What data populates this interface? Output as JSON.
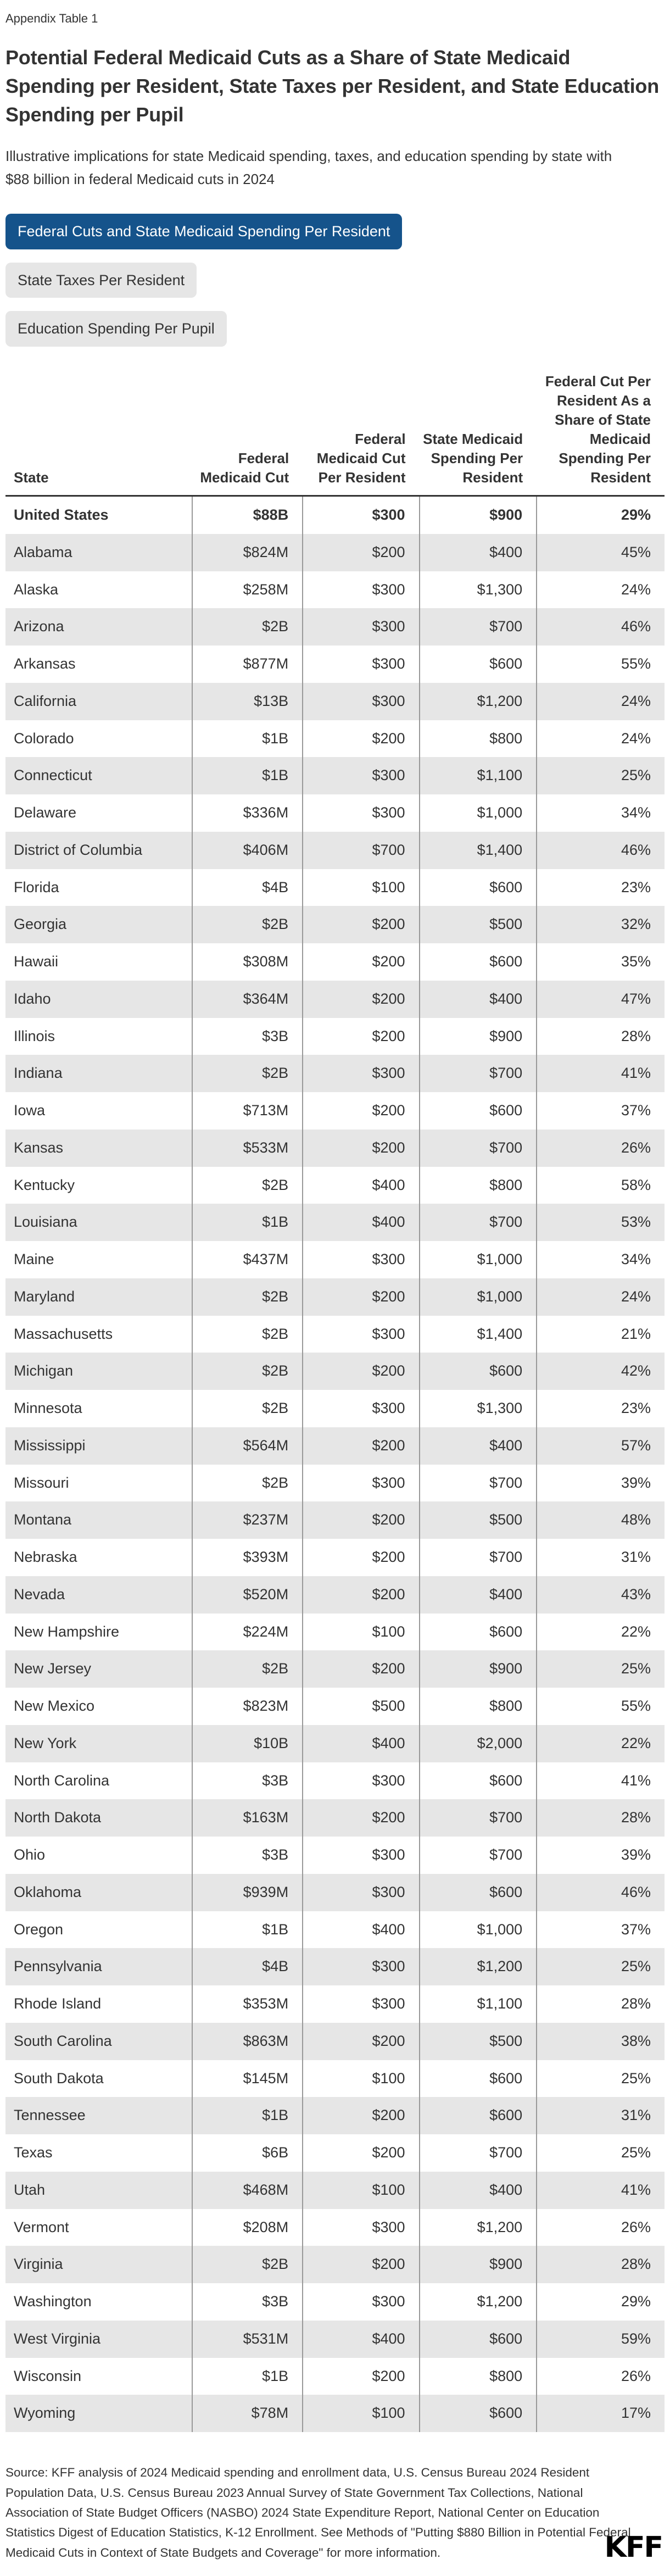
{
  "page": {
    "kicker": "Appendix Table 1",
    "logo": "KFF",
    "source": "Source: KFF analysis of 2024 Medicaid spending and enrollment data, U.S. Census Bureau 2024 Resident Population Data, U.S. Census Bureau 2023 Annual Survey of State Government Tax Collections, National Association of State Budget Officers (NASBO) 2024 State Expenditure Report, National Center on Education Statistics Digest of Education Statistics, K-12 Enrollment. See Methods of \"Putting $880 Billion in Potential Federal Medicaid Cuts in Context of State Budgets and Coverage\" for more information."
  },
  "tabs": [
    {
      "label": "Federal Cuts and State Medicaid Spending Per Resident",
      "active": true
    },
    {
      "label": "State Taxes Per Resident",
      "active": false
    },
    {
      "label": "Education Spending Per Pupil",
      "active": false
    }
  ],
  "colors": {
    "active_tab": "#15538b",
    "inactive_tab": "#e6e6e6",
    "row_stripe": "#e6e6e6",
    "text": "#333333",
    "divider": "#999999",
    "header_rule": "#333333"
  },
  "chart_data": {
    "type": "table",
    "title": "Potential Federal Medicaid Cuts as a Share of State Medicaid Spending per Resident, State Taxes per Resident, and State Education Spending per Pupil",
    "subtitle": "Illustrative implications for state Medicaid spending, taxes, and education spending by state with $88 billion in federal Medicaid cuts in 2024",
    "columns": [
      "State",
      "Federal Medicaid Cut",
      "Federal Medicaid Cut Per Resident",
      "State Medicaid Spending Per Resident",
      "Federal Cut Per Resident As a Share of State Medicaid Spending Per Resident"
    ],
    "rows": [
      [
        "United States",
        "$88B",
        "$300",
        "$900",
        "29%"
      ],
      [
        "Alabama",
        "$824M",
        "$200",
        "$400",
        "45%"
      ],
      [
        "Alaska",
        "$258M",
        "$300",
        "$1,300",
        "24%"
      ],
      [
        "Arizona",
        "$2B",
        "$300",
        "$700",
        "46%"
      ],
      [
        "Arkansas",
        "$877M",
        "$300",
        "$600",
        "55%"
      ],
      [
        "California",
        "$13B",
        "$300",
        "$1,200",
        "24%"
      ],
      [
        "Colorado",
        "$1B",
        "$200",
        "$800",
        "24%"
      ],
      [
        "Connecticut",
        "$1B",
        "$300",
        "$1,100",
        "25%"
      ],
      [
        "Delaware",
        "$336M",
        "$300",
        "$1,000",
        "34%"
      ],
      [
        "District of Columbia",
        "$406M",
        "$700",
        "$1,400",
        "46%"
      ],
      [
        "Florida",
        "$4B",
        "$100",
        "$600",
        "23%"
      ],
      [
        "Georgia",
        "$2B",
        "$200",
        "$500",
        "32%"
      ],
      [
        "Hawaii",
        "$308M",
        "$200",
        "$600",
        "35%"
      ],
      [
        "Idaho",
        "$364M",
        "$200",
        "$400",
        "47%"
      ],
      [
        "Illinois",
        "$3B",
        "$200",
        "$900",
        "28%"
      ],
      [
        "Indiana",
        "$2B",
        "$300",
        "$700",
        "41%"
      ],
      [
        "Iowa",
        "$713M",
        "$200",
        "$600",
        "37%"
      ],
      [
        "Kansas",
        "$533M",
        "$200",
        "$700",
        "26%"
      ],
      [
        "Kentucky",
        "$2B",
        "$400",
        "$800",
        "58%"
      ],
      [
        "Louisiana",
        "$1B",
        "$400",
        "$700",
        "53%"
      ],
      [
        "Maine",
        "$437M",
        "$300",
        "$1,000",
        "34%"
      ],
      [
        "Maryland",
        "$2B",
        "$200",
        "$1,000",
        "24%"
      ],
      [
        "Massachusetts",
        "$2B",
        "$300",
        "$1,400",
        "21%"
      ],
      [
        "Michigan",
        "$2B",
        "$200",
        "$600",
        "42%"
      ],
      [
        "Minnesota",
        "$2B",
        "$300",
        "$1,300",
        "23%"
      ],
      [
        "Mississippi",
        "$564M",
        "$200",
        "$400",
        "57%"
      ],
      [
        "Missouri",
        "$2B",
        "$300",
        "$700",
        "39%"
      ],
      [
        "Montana",
        "$237M",
        "$200",
        "$500",
        "48%"
      ],
      [
        "Nebraska",
        "$393M",
        "$200",
        "$700",
        "31%"
      ],
      [
        "Nevada",
        "$520M",
        "$200",
        "$400",
        "43%"
      ],
      [
        "New Hampshire",
        "$224M",
        "$100",
        "$600",
        "22%"
      ],
      [
        "New Jersey",
        "$2B",
        "$200",
        "$900",
        "25%"
      ],
      [
        "New Mexico",
        "$823M",
        "$500",
        "$800",
        "55%"
      ],
      [
        "New York",
        "$10B",
        "$400",
        "$2,000",
        "22%"
      ],
      [
        "North Carolina",
        "$3B",
        "$300",
        "$600",
        "41%"
      ],
      [
        "North Dakota",
        "$163M",
        "$200",
        "$700",
        "28%"
      ],
      [
        "Ohio",
        "$3B",
        "$300",
        "$700",
        "39%"
      ],
      [
        "Oklahoma",
        "$939M",
        "$300",
        "$600",
        "46%"
      ],
      [
        "Oregon",
        "$1B",
        "$400",
        "$1,000",
        "37%"
      ],
      [
        "Pennsylvania",
        "$4B",
        "$300",
        "$1,200",
        "25%"
      ],
      [
        "Rhode Island",
        "$353M",
        "$300",
        "$1,100",
        "28%"
      ],
      [
        "South Carolina",
        "$863M",
        "$200",
        "$500",
        "38%"
      ],
      [
        "South Dakota",
        "$145M",
        "$100",
        "$600",
        "25%"
      ],
      [
        "Tennessee",
        "$1B",
        "$200",
        "$600",
        "31%"
      ],
      [
        "Texas",
        "$6B",
        "$200",
        "$700",
        "25%"
      ],
      [
        "Utah",
        "$468M",
        "$100",
        "$400",
        "41%"
      ],
      [
        "Vermont",
        "$208M",
        "$300",
        "$1,200",
        "26%"
      ],
      [
        "Virginia",
        "$2B",
        "$200",
        "$900",
        "28%"
      ],
      [
        "Washington",
        "$3B",
        "$300",
        "$1,200",
        "29%"
      ],
      [
        "West Virginia",
        "$531M",
        "$400",
        "$600",
        "59%"
      ],
      [
        "Wisconsin",
        "$1B",
        "$200",
        "$800",
        "26%"
      ],
      [
        "Wyoming",
        "$78M",
        "$100",
        "$600",
        "17%"
      ]
    ]
  }
}
